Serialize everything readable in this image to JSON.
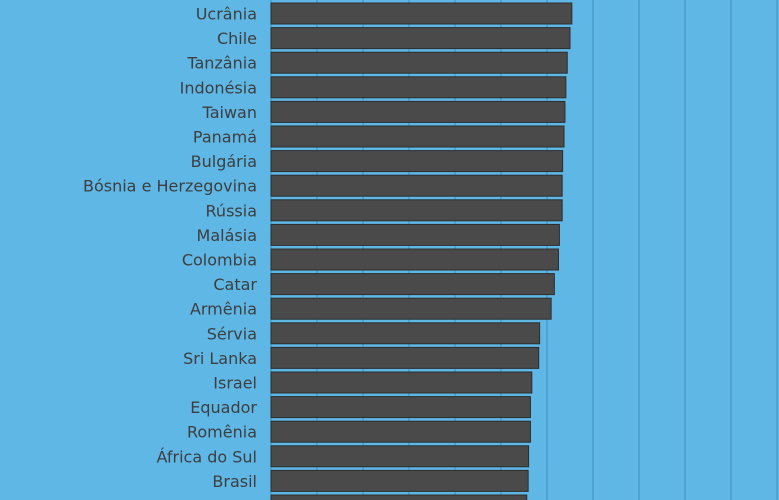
{
  "chart_data": {
    "type": "bar",
    "orientation": "horizontal",
    "categories": [
      "Ucrânia",
      "Chile",
      "Tanzânia",
      "Indonésia",
      "Taiwan",
      "Panamá",
      "Bulgária",
      "Bósnia e Herzegovina",
      "Rússia",
      "Malásia",
      "Colombia",
      "Catar",
      "Armênia",
      "Sérvia",
      "Sri Lanka",
      "Israel",
      "Equador",
      "Romênia",
      "África do Sul",
      "Brasil",
      ""
    ],
    "values": [
      65.4,
      65.0,
      64.4,
      64.1,
      63.9,
      63.7,
      63.4,
      63.3,
      63.3,
      62.7,
      62.5,
      61.6,
      60.9,
      58.4,
      58.2,
      56.7,
      56.4,
      56.4,
      56.0,
      55.9,
      55.6
    ],
    "xlim": [
      0,
      110
    ],
    "grid": true,
    "colors": {
      "background": "#5fb7e5",
      "bar": "#4a4a4a",
      "bar_edge": "#2e2e2e",
      "grid": "#3f8fc0",
      "label": "#3e3e3e"
    }
  }
}
